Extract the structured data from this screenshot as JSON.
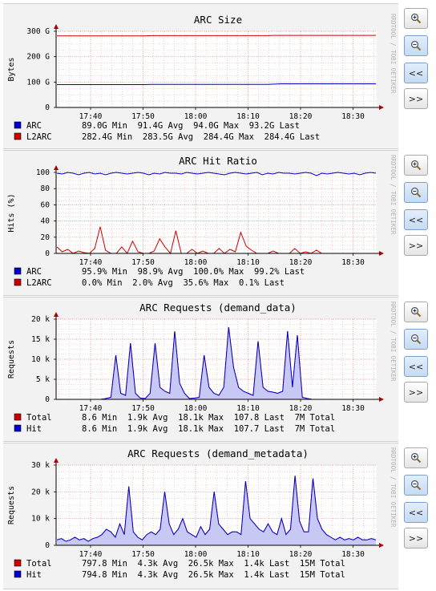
{
  "watermark": "RRDTOOL / TOBI OETIKER",
  "buttons": {
    "zoom_in": "zoom-in",
    "zoom_out": "zoom-out",
    "back": "<<",
    "forward": ">>"
  },
  "chart_data": [
    {
      "type": "line",
      "title": "ARC Size",
      "ylabel": "Bytes",
      "ylim": [
        0,
        300
      ],
      "yticks": [
        0,
        100,
        200,
        300
      ],
      "yticklabels": [
        "0",
        "100 G",
        "200 G",
        "300 G"
      ],
      "xticks": [
        "17:40",
        "17:50",
        "18:00",
        "18:10",
        "18:20",
        "18:30"
      ],
      "grid": true,
      "legend_placement": "bottom",
      "series": [
        {
          "name": "ARC",
          "color": "#0000cc",
          "stats": [
            "89.0G Min",
            "91.4G Avg",
            "94.0G Max",
            "93.2G Last"
          ],
          "values": [
            90,
            90,
            90,
            90,
            90,
            90,
            90,
            90,
            90,
            90,
            90,
            90,
            90,
            91,
            91,
            91,
            91,
            91,
            91,
            91,
            91,
            91,
            91,
            91,
            91,
            91,
            91,
            91,
            91,
            91,
            92,
            93,
            93,
            93,
            93,
            93,
            93,
            93,
            93,
            93,
            93,
            93,
            93,
            93,
            93
          ]
        },
        {
          "name": "L2ARC",
          "color": "#cc0000",
          "stats": [
            "282.4G Min",
            "283.5G Avg",
            "284.4G Max",
            "284.4G Last"
          ],
          "values": [
            282,
            282,
            282,
            282,
            282,
            282,
            282,
            282,
            282,
            282,
            282,
            282,
            282,
            283,
            283,
            283,
            283,
            283,
            283,
            283,
            283,
            283,
            283,
            283,
            283,
            283,
            283,
            283,
            283,
            283,
            284,
            284,
            284,
            284,
            284,
            284,
            284,
            284,
            284,
            284,
            284,
            284,
            284,
            284,
            284
          ]
        }
      ]
    },
    {
      "type": "line",
      "title": "ARC Hit Ratio",
      "ylabel": "Hits (%)",
      "ylim": [
        0,
        100
      ],
      "yticks": [
        0,
        20,
        40,
        60,
        80,
        100
      ],
      "yticklabels": [
        "0",
        "20",
        "40",
        "60",
        "80",
        "100"
      ],
      "xticks": [
        "17:40",
        "17:50",
        "18:00",
        "18:10",
        "18:20",
        "18:30"
      ],
      "grid": true,
      "legend_placement": "bottom",
      "series": [
        {
          "name": "ARC",
          "color": "#0000cc",
          "stats": [
            "95.9% Min",
            "98.9% Avg",
            "100.0% Max",
            "99.2% Last"
          ],
          "values": [
            99,
            98,
            100,
            99,
            97,
            99,
            100,
            98,
            99,
            97,
            99,
            100,
            99,
            98,
            99,
            100,
            99,
            97,
            99,
            98,
            100,
            99,
            99,
            98,
            100,
            99,
            98,
            99,
            100,
            99,
            98,
            97,
            99,
            100,
            99,
            98,
            99,
            100,
            97,
            99,
            98,
            100,
            99,
            99,
            98,
            99,
            100,
            99,
            96,
            99,
            98,
            99,
            100,
            99,
            98,
            99,
            97,
            99,
            100,
            99
          ]
        },
        {
          "name": "L2ARC",
          "color": "#cc0000",
          "stats": [
            "0.0% Min",
            "2.0% Avg",
            "35.6% Max",
            "0.1% Last"
          ],
          "values": [
            8,
            2,
            5,
            0,
            3,
            1,
            0,
            6,
            33,
            4,
            0,
            0,
            8,
            0,
            15,
            2,
            0,
            0,
            3,
            18,
            8,
            0,
            28,
            0,
            0,
            5,
            0,
            3,
            0,
            0,
            6,
            0,
            5,
            2,
            26,
            9,
            4,
            0,
            0,
            0,
            3,
            0,
            0,
            0,
            6,
            0,
            2,
            0,
            4,
            0,
            0,
            0,
            0,
            0,
            0,
            0,
            0,
            0,
            0,
            0
          ]
        }
      ]
    },
    {
      "type": "area",
      "title": "ARC Requests (demand_data)",
      "ylabel": "Requests",
      "ylim": [
        0,
        20
      ],
      "yticks": [
        0,
        5,
        10,
        15,
        20
      ],
      "yticklabels": [
        "0",
        "5 k",
        "10 k",
        "15 k",
        "20 k"
      ],
      "xticks": [
        "17:40",
        "17:50",
        "18:00",
        "18:10",
        "18:20",
        "18:30"
      ],
      "grid": true,
      "legend_placement": "bottom",
      "series": [
        {
          "name": "Total",
          "color": "#cc0000",
          "stats": [
            "8.6 Min",
            "1.9k Avg",
            "18.1k Max",
            "107.8 Last",
            "7M Total"
          ],
          "values": [
            0,
            0,
            0,
            0,
            0,
            0,
            0,
            0,
            0,
            0,
            0.2,
            0.5,
            11,
            1.5,
            1,
            14,
            1.5,
            0.3,
            0.2,
            1.5,
            14,
            3,
            2,
            1.5,
            17,
            4,
            1.5,
            0.2,
            0.3,
            0.5,
            11,
            3,
            1.5,
            1,
            3,
            18,
            8,
            3,
            2,
            1.5,
            1,
            14.5,
            3,
            2,
            1.8,
            1.5,
            2,
            17,
            3,
            16,
            0.5,
            0.2,
            0,
            0,
            0,
            0,
            0,
            0,
            0,
            0,
            0,
            0,
            0,
            0,
            0,
            0
          ]
        },
        {
          "name": "Hit",
          "color": "#0000cc",
          "stats": [
            "8.6 Min",
            "1.9k Avg",
            "18.1k Max",
            "107.7 Last",
            "7M Total"
          ],
          "values": [
            0,
            0,
            0,
            0,
            0,
            0,
            0,
            0,
            0,
            0,
            0.2,
            0.5,
            11,
            1.5,
            1,
            14,
            1.5,
            0.3,
            0.2,
            1.5,
            14,
            3,
            2,
            1.5,
            17,
            4,
            1.5,
            0.2,
            0.3,
            0.5,
            11,
            3,
            1.5,
            1,
            3,
            18,
            8,
            3,
            2,
            1.5,
            1,
            14.5,
            3,
            2,
            1.8,
            1.5,
            2,
            17,
            3,
            16,
            0.5,
            0.2,
            0,
            0,
            0,
            0,
            0,
            0,
            0,
            0,
            0,
            0,
            0,
            0,
            0,
            0
          ]
        }
      ]
    },
    {
      "type": "area",
      "title": "ARC Requests (demand_metadata)",
      "ylabel": "Requests",
      "ylim": [
        0,
        30
      ],
      "yticks": [
        0,
        10,
        20,
        30
      ],
      "yticklabels": [
        "0",
        "10 k",
        "20 k",
        "30 k"
      ],
      "xticks": [
        "17:40",
        "17:50",
        "18:00",
        "18:10",
        "18:20",
        "18:30"
      ],
      "grid": true,
      "legend_placement": "bottom",
      "series": [
        {
          "name": "Total",
          "color": "#cc0000",
          "stats": [
            "797.8 Min",
            "4.3k Avg",
            "26.5k Max",
            "1.4k Last",
            "15M Total"
          ],
          "values": [
            2,
            2.5,
            1.5,
            2,
            3,
            2,
            2.5,
            1.5,
            2.5,
            3,
            4,
            6,
            5,
            3,
            8,
            4,
            22,
            5,
            3,
            2,
            4,
            5,
            4,
            6,
            20,
            8,
            4,
            6,
            10,
            5,
            4,
            3,
            7,
            4,
            6,
            20,
            8,
            6,
            4,
            5,
            5,
            4,
            24,
            10,
            8,
            6,
            5,
            8,
            5,
            4,
            10,
            4,
            6,
            26,
            9,
            5,
            5,
            25,
            10,
            6,
            4,
            3,
            2,
            3,
            2,
            2.5,
            2,
            3,
            2,
            2,
            2.5,
            2
          ]
        },
        {
          "name": "Hit",
          "color": "#0000cc",
          "stats": [
            "794.8 Min",
            "4.3k Avg",
            "26.5k Max",
            "1.4k Last",
            "15M Total"
          ],
          "values": [
            2,
            2.5,
            1.5,
            2,
            3,
            2,
            2.5,
            1.5,
            2.5,
            3,
            4,
            6,
            5,
            3,
            8,
            4,
            22,
            5,
            3,
            2,
            4,
            5,
            4,
            6,
            20,
            8,
            4,
            6,
            10,
            5,
            4,
            3,
            7,
            4,
            6,
            20,
            8,
            6,
            4,
            5,
            5,
            4,
            24,
            10,
            8,
            6,
            5,
            8,
            5,
            4,
            10,
            4,
            6,
            26,
            9,
            5,
            5,
            25,
            10,
            6,
            4,
            3,
            2,
            3,
            2,
            2.5,
            2,
            3,
            2,
            2,
            2.5,
            2
          ]
        }
      ]
    }
  ]
}
